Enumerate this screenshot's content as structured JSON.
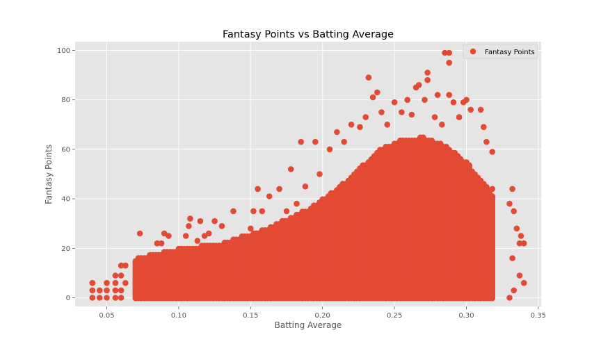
{
  "chart_data": {
    "type": "scatter",
    "title": "Fantasy Points vs Batting Average",
    "xlabel": "Batting Average",
    "ylabel": "Fantasy Points",
    "xlim": [
      0.028,
      0.352
    ],
    "ylim": [
      -3.5,
      103.5
    ],
    "xticks": [
      0.05,
      0.1,
      0.15,
      0.2,
      0.25,
      0.3,
      0.35
    ],
    "xtick_labels": [
      "0.05",
      "0.10",
      "0.15",
      "0.20",
      "0.25",
      "0.30",
      "0.35"
    ],
    "yticks": [
      0,
      20,
      40,
      60,
      80,
      100
    ],
    "ytick_labels": [
      "0",
      "20",
      "40",
      "60",
      "80",
      "100"
    ],
    "grid": true,
    "legend_position": "top-right",
    "style": {
      "marker_color": "#E24A33",
      "axes_bg": "#E5E5E5",
      "grid_color": "#FFFFFF"
    },
    "series": [
      {
        "name": "Fantasy Points",
        "points": [
          [
            0.04,
            0
          ],
          [
            0.04,
            3
          ],
          [
            0.04,
            6
          ],
          [
            0.045,
            0
          ],
          [
            0.045,
            3
          ],
          [
            0.05,
            0
          ],
          [
            0.05,
            3
          ],
          [
            0.05,
            6
          ],
          [
            0.056,
            0
          ],
          [
            0.056,
            3
          ],
          [
            0.056,
            6
          ],
          [
            0.056,
            9
          ],
          [
            0.06,
            0
          ],
          [
            0.06,
            3
          ],
          [
            0.06,
            9
          ],
          [
            0.06,
            13
          ],
          [
            0.063,
            13
          ],
          [
            0.063,
            6
          ],
          [
            0.071,
            13
          ],
          [
            0.073,
            26
          ],
          [
            0.08,
            16
          ],
          [
            0.082,
            13
          ],
          [
            0.085,
            22
          ],
          [
            0.088,
            22
          ],
          [
            0.09,
            26
          ],
          [
            0.093,
            25
          ],
          [
            0.095,
            16
          ],
          [
            0.1,
            19
          ],
          [
            0.103,
            16
          ],
          [
            0.105,
            25
          ],
          [
            0.107,
            29
          ],
          [
            0.108,
            32
          ],
          [
            0.113,
            23
          ],
          [
            0.115,
            31
          ],
          [
            0.118,
            25
          ],
          [
            0.121,
            26
          ],
          [
            0.125,
            31
          ],
          [
            0.13,
            29
          ],
          [
            0.133,
            22
          ],
          [
            0.138,
            35
          ],
          [
            0.143,
            19
          ],
          [
            0.146,
            23
          ],
          [
            0.15,
            28
          ],
          [
            0.152,
            35
          ],
          [
            0.155,
            44
          ],
          [
            0.158,
            35
          ],
          [
            0.163,
            41
          ],
          [
            0.17,
            44
          ],
          [
            0.175,
            35
          ],
          [
            0.178,
            52
          ],
          [
            0.182,
            38
          ],
          [
            0.185,
            63
          ],
          [
            0.188,
            45
          ],
          [
            0.195,
            63
          ],
          [
            0.198,
            50
          ],
          [
            0.205,
            60
          ],
          [
            0.21,
            67
          ],
          [
            0.215,
            63
          ],
          [
            0.22,
            70
          ],
          [
            0.226,
            69
          ],
          [
            0.23,
            73
          ],
          [
            0.232,
            89
          ],
          [
            0.235,
            81
          ],
          [
            0.238,
            83
          ],
          [
            0.241,
            75
          ],
          [
            0.245,
            70
          ],
          [
            0.25,
            79
          ],
          [
            0.255,
            75
          ],
          [
            0.259,
            80
          ],
          [
            0.262,
            74
          ],
          [
            0.265,
            85
          ],
          [
            0.267,
            86
          ],
          [
            0.271,
            80
          ],
          [
            0.273,
            91
          ],
          [
            0.273,
            88
          ],
          [
            0.278,
            73
          ],
          [
            0.28,
            82
          ],
          [
            0.283,
            70
          ],
          [
            0.285,
            99
          ],
          [
            0.288,
            99
          ],
          [
            0.288,
            95
          ],
          [
            0.288,
            82
          ],
          [
            0.291,
            79
          ],
          [
            0.295,
            73
          ],
          [
            0.298,
            79
          ],
          [
            0.3,
            80
          ],
          [
            0.303,
            76
          ],
          [
            0.31,
            76
          ],
          [
            0.312,
            69
          ],
          [
            0.314,
            63
          ],
          [
            0.318,
            59
          ],
          [
            0.318,
            44
          ],
          [
            0.33,
            38
          ],
          [
            0.332,
            44
          ],
          [
            0.333,
            35
          ],
          [
            0.335,
            28
          ],
          [
            0.337,
            22
          ],
          [
            0.338,
            25
          ],
          [
            0.34,
            22
          ],
          [
            0.332,
            16
          ],
          [
            0.337,
            9
          ],
          [
            0.333,
            3
          ],
          [
            0.34,
            6
          ],
          [
            0.33,
            0
          ],
          [
            0.318,
            0
          ],
          [
            0.31,
            31
          ],
          [
            0.3,
            35
          ],
          [
            0.29,
            50
          ]
        ]
      }
    ]
  }
}
